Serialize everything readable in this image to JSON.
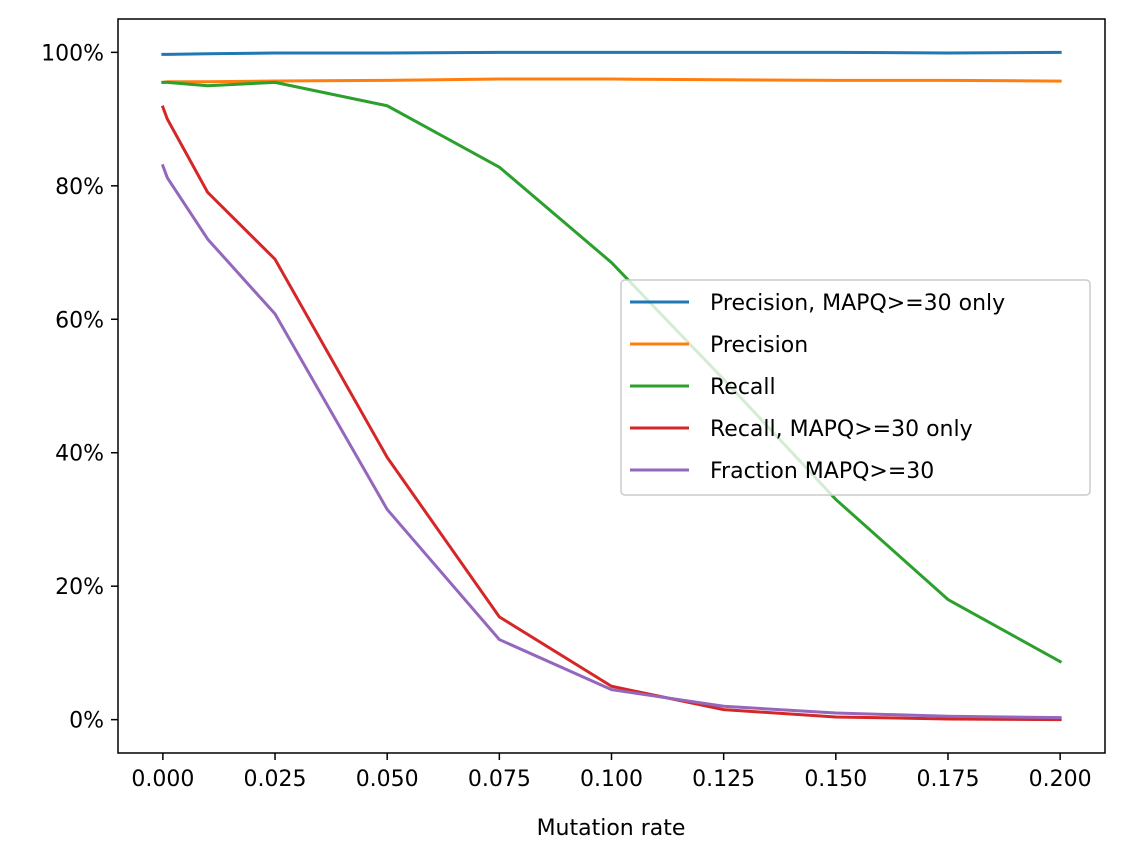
{
  "chart_data": {
    "type": "line",
    "title": "",
    "xlabel": "Mutation rate",
    "ylabel": "",
    "xlim": [
      -0.01,
      0.21
    ],
    "ylim": [
      -0.05,
      1.05
    ],
    "x_ticks": [
      0.0,
      0.025,
      0.05,
      0.075,
      0.1,
      0.125,
      0.15,
      0.175,
      0.2
    ],
    "x_tick_labels": [
      "0.000",
      "0.025",
      "0.050",
      "0.075",
      "0.100",
      "0.125",
      "0.150",
      "0.175",
      "0.200"
    ],
    "y_ticks": [
      0.0,
      0.2,
      0.4,
      0.6,
      0.8,
      1.0
    ],
    "y_tick_labels": [
      "0%",
      "20%",
      "40%",
      "60%",
      "80%",
      "100%"
    ],
    "grid": false,
    "legend_position": "center-right",
    "x": [
      0.0,
      0.001,
      0.01,
      0.025,
      0.05,
      0.075,
      0.1,
      0.125,
      0.15,
      0.175,
      0.2
    ],
    "series": [
      {
        "name": "Precision, MAPQ>=30 only",
        "color": "#1f77b4",
        "values": [
          0.997,
          0.997,
          0.998,
          0.999,
          0.999,
          1.0,
          1.0,
          1.0,
          1.0,
          0.999,
          1.0
        ]
      },
      {
        "name": "Precision",
        "color": "#ff7f0e",
        "values": [
          0.955,
          0.956,
          0.956,
          0.957,
          0.958,
          0.96,
          0.96,
          0.959,
          0.958,
          0.958,
          0.957
        ]
      },
      {
        "name": "Recall",
        "color": "#2ca02c",
        "values": [
          0.955,
          0.955,
          0.95,
          0.955,
          0.92,
          0.828,
          0.685,
          0.51,
          0.33,
          0.18,
          0.087
        ]
      },
      {
        "name": "Recall, MAPQ>=30 only",
        "color": "#d62728",
        "values": [
          0.918,
          0.9,
          0.79,
          0.69,
          0.393,
          0.154,
          0.05,
          0.015,
          0.004,
          0.001,
          0.0
        ]
      },
      {
        "name": "Fraction MAPQ>=30",
        "color": "#9467bd",
        "values": [
          0.83,
          0.812,
          0.72,
          0.608,
          0.315,
          0.12,
          0.045,
          0.02,
          0.01,
          0.005,
          0.003
        ]
      }
    ]
  }
}
